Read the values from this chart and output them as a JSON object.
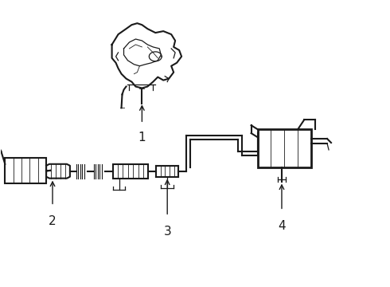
{
  "bg_color": "#ffffff",
  "line_color": "#1a1a1a",
  "label_color": "#111111",
  "lw_main": 1.5,
  "lw_thin": 0.9,
  "lw_detail": 0.6
}
